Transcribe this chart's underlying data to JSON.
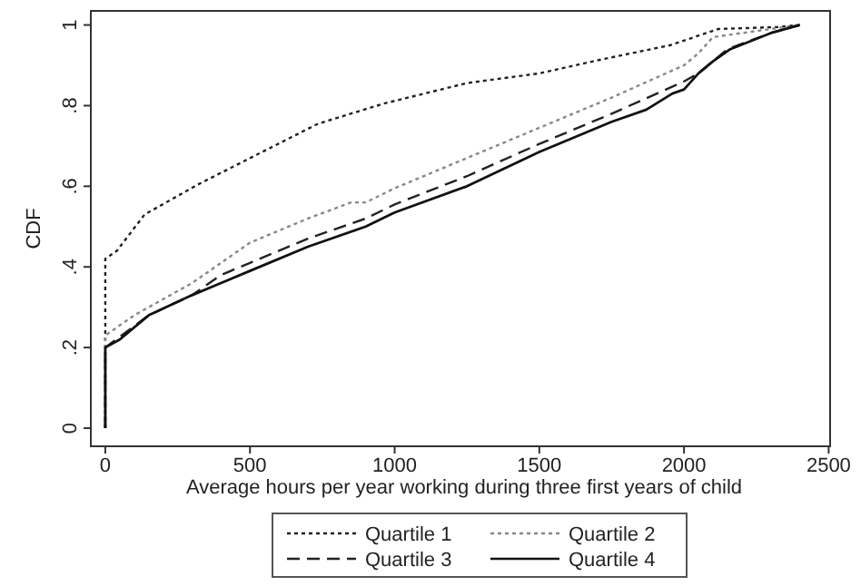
{
  "chart_data": {
    "type": "line",
    "xlabel": "Average hours per year working during three first years of child",
    "ylabel": "CDF",
    "xlim": [
      -50,
      2505
    ],
    "ylim": [
      -0.045,
      1.035
    ],
    "xticks": [
      0,
      500,
      1000,
      1500,
      2000,
      2500
    ],
    "yticks": [
      0,
      {
        "value": 0.2,
        "label": ".2"
      },
      {
        "value": 0.4,
        "label": ".4"
      },
      {
        "value": 0.6,
        "label": ".6"
      },
      {
        "value": 0.8,
        "label": ".8"
      },
      1
    ],
    "grid": false,
    "legend": "bottom",
    "marker": "none",
    "series": [
      {
        "name": "Quartile 1",
        "color": "#222222",
        "line_style": "dotted",
        "x": [
          0,
          0,
          40,
          136,
          322,
          487,
          735,
          962,
          1250,
          1500,
          1705,
          1953,
          2118,
          2324,
          2400
        ],
        "values": [
          0,
          0.42,
          0.44,
          0.53,
          0.605,
          0.665,
          0.755,
          0.805,
          0.856,
          0.88,
          0.913,
          0.95,
          0.99,
          0.995,
          1
        ]
      },
      {
        "name": "Quartile 2",
        "color": "#888888",
        "line_style": "dotted",
        "x": [
          0,
          0,
          100,
          300,
          500,
          700,
          850,
          900,
          1000,
          1250,
          1500,
          1750,
          2000,
          2050,
          2100,
          2200,
          2400
        ],
        "values": [
          0,
          0.23,
          0.28,
          0.36,
          0.46,
          0.52,
          0.56,
          0.56,
          0.595,
          0.67,
          0.745,
          0.82,
          0.9,
          0.93,
          0.97,
          0.98,
          1
        ]
      },
      {
        "name": "Quartile 3",
        "color": "#222222",
        "line_style": "dashed",
        "x": [
          0,
          0,
          150,
          300,
          400,
          500,
          700,
          900,
          1000,
          1250,
          1500,
          1750,
          2000,
          2050,
          2150,
          2300,
          2400
        ],
        "values": [
          0,
          0.2,
          0.28,
          0.33,
          0.38,
          0.41,
          0.47,
          0.52,
          0.555,
          0.625,
          0.705,
          0.78,
          0.86,
          0.88,
          0.94,
          0.98,
          1
        ]
      },
      {
        "name": "Quartile 4",
        "color": "#111111",
        "line_style": "solid",
        "x": [
          0,
          0,
          50,
          150,
          300,
          400,
          500,
          700,
          900,
          1000,
          1250,
          1500,
          1750,
          1870,
          1960,
          2000,
          2050,
          2100,
          2160,
          2300,
          2400
        ],
        "values": [
          0,
          0.2,
          0.22,
          0.28,
          0.33,
          0.36,
          0.39,
          0.45,
          0.5,
          0.535,
          0.6,
          0.685,
          0.76,
          0.79,
          0.83,
          0.84,
          0.88,
          0.91,
          0.94,
          0.98,
          1
        ]
      }
    ]
  }
}
